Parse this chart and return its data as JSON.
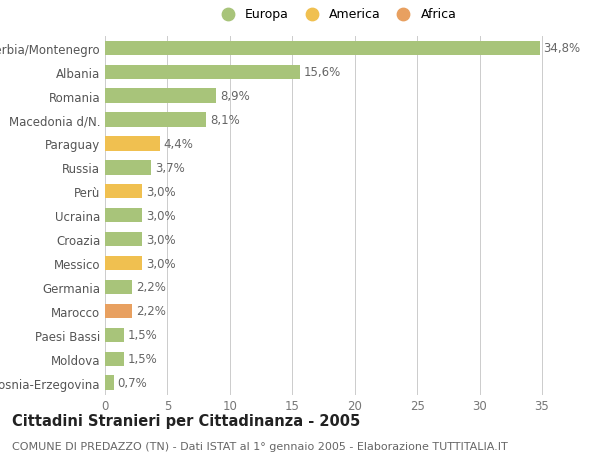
{
  "categories": [
    "Bosnia-Erzegovina",
    "Moldova",
    "Paesi Bassi",
    "Marocco",
    "Germania",
    "Messico",
    "Croazia",
    "Ucraina",
    "Perù",
    "Russia",
    "Paraguay",
    "Macedonia d/N.",
    "Romania",
    "Albania",
    "Serbia/Montenegro"
  ],
  "values": [
    0.7,
    1.5,
    1.5,
    2.2,
    2.2,
    3.0,
    3.0,
    3.0,
    3.0,
    3.7,
    4.4,
    8.1,
    8.9,
    15.6,
    34.8
  ],
  "labels": [
    "0,7%",
    "1,5%",
    "1,5%",
    "2,2%",
    "2,2%",
    "3,0%",
    "3,0%",
    "3,0%",
    "3,0%",
    "3,7%",
    "4,4%",
    "8,1%",
    "8,9%",
    "15,6%",
    "34,8%"
  ],
  "continents": [
    "Europa",
    "Europa",
    "Europa",
    "Africa",
    "Europa",
    "America",
    "Europa",
    "Europa",
    "America",
    "Europa",
    "America",
    "Europa",
    "Europa",
    "Europa",
    "Europa"
  ],
  "colors": {
    "Europa": "#a8c47a",
    "America": "#f0c050",
    "Africa": "#e8a060"
  },
  "xlim": [
    0,
    37
  ],
  "xticks": [
    0,
    5,
    10,
    15,
    20,
    25,
    30,
    35
  ],
  "title": "Cittadini Stranieri per Cittadinanza - 2005",
  "subtitle": "COMUNE DI PREDAZZO (TN) - Dati ISTAT al 1° gennaio 2005 - Elaborazione TUTTITALIA.IT",
  "background_color": "#ffffff",
  "plot_background": "#ffffff",
  "grid_color": "#cccccc",
  "bar_height": 0.6,
  "label_fontsize": 8.5,
  "tick_fontsize": 8.5,
  "title_fontsize": 10.5,
  "subtitle_fontsize": 8
}
